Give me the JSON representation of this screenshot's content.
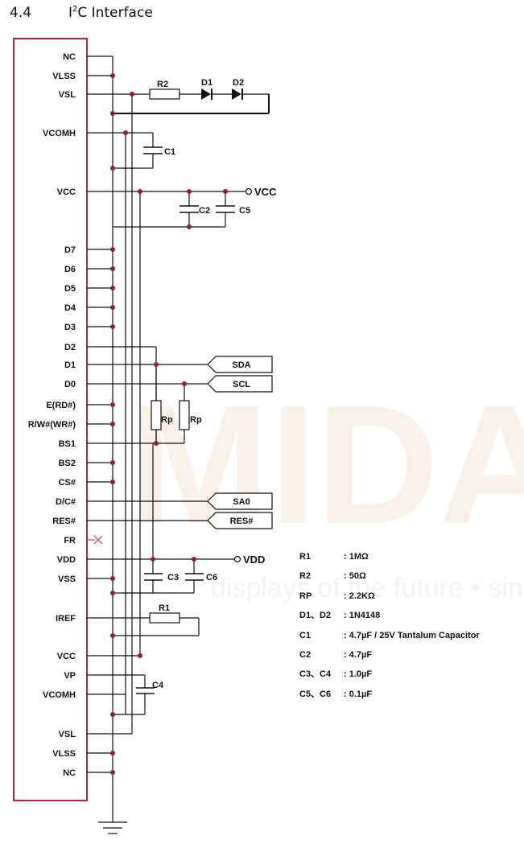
{
  "heading": {
    "number": "4.4",
    "title_main": "I",
    "title_sup": "2",
    "title_rest": "C Interface"
  },
  "pins": [
    "NC",
    "VLSS",
    "VSL",
    "VCOMH",
    "VCC",
    "D7",
    "D6",
    "D5",
    "D4",
    "D3",
    "D2",
    "D1",
    "D0",
    "E(RD#)",
    "R/W#(WR#)",
    "BS1",
    "BS2",
    "CS#",
    "D/C#",
    "RES#",
    "FR",
    "VDD",
    "VSS",
    "IREF",
    "VCC",
    "VP",
    "VCOMH",
    "VSL",
    "VLSS",
    "NC"
  ],
  "components": {
    "r2": "R2",
    "d1": "D1",
    "d2": "D2",
    "c1": "C1",
    "c2": "C2",
    "c5": "C5",
    "rp_left": "Rp",
    "rp_right": "Rp",
    "c3": "C3",
    "c6": "C6",
    "r1": "R1",
    "c4": "C4"
  },
  "rails": {
    "vcc": "VCC",
    "vdd": "VDD"
  },
  "signals": [
    "SDA",
    "SCL",
    "SA0",
    "RES#"
  ],
  "bom": [
    {
      "ref": "R1",
      "value": ": 1MΩ"
    },
    {
      "ref": "R2",
      "value": ": 50Ω"
    },
    {
      "ref": "RP",
      "value": ": 2.2KΩ"
    },
    {
      "ref": "D1、D2",
      "value": ": 1N4148"
    },
    {
      "ref": "C1",
      "value": ": 4.7µF / 25V Tantalum Capacitor"
    },
    {
      "ref": "C2",
      "value": ": 4.7µF"
    },
    {
      "ref": "C3、C4",
      "value": ": 1.0µF"
    },
    {
      "ref": "C5、C6",
      "value": ": 0.1µF"
    }
  ],
  "watermark": {
    "logo": "MIDAS",
    "tagline": "displays of the future • since"
  },
  "colors": {
    "ic_border": "#b5253a",
    "node": "#9b1b2a",
    "wire": "#111111",
    "nc_mark": "#d23b3b",
    "watermark": "#f6f0e6"
  }
}
